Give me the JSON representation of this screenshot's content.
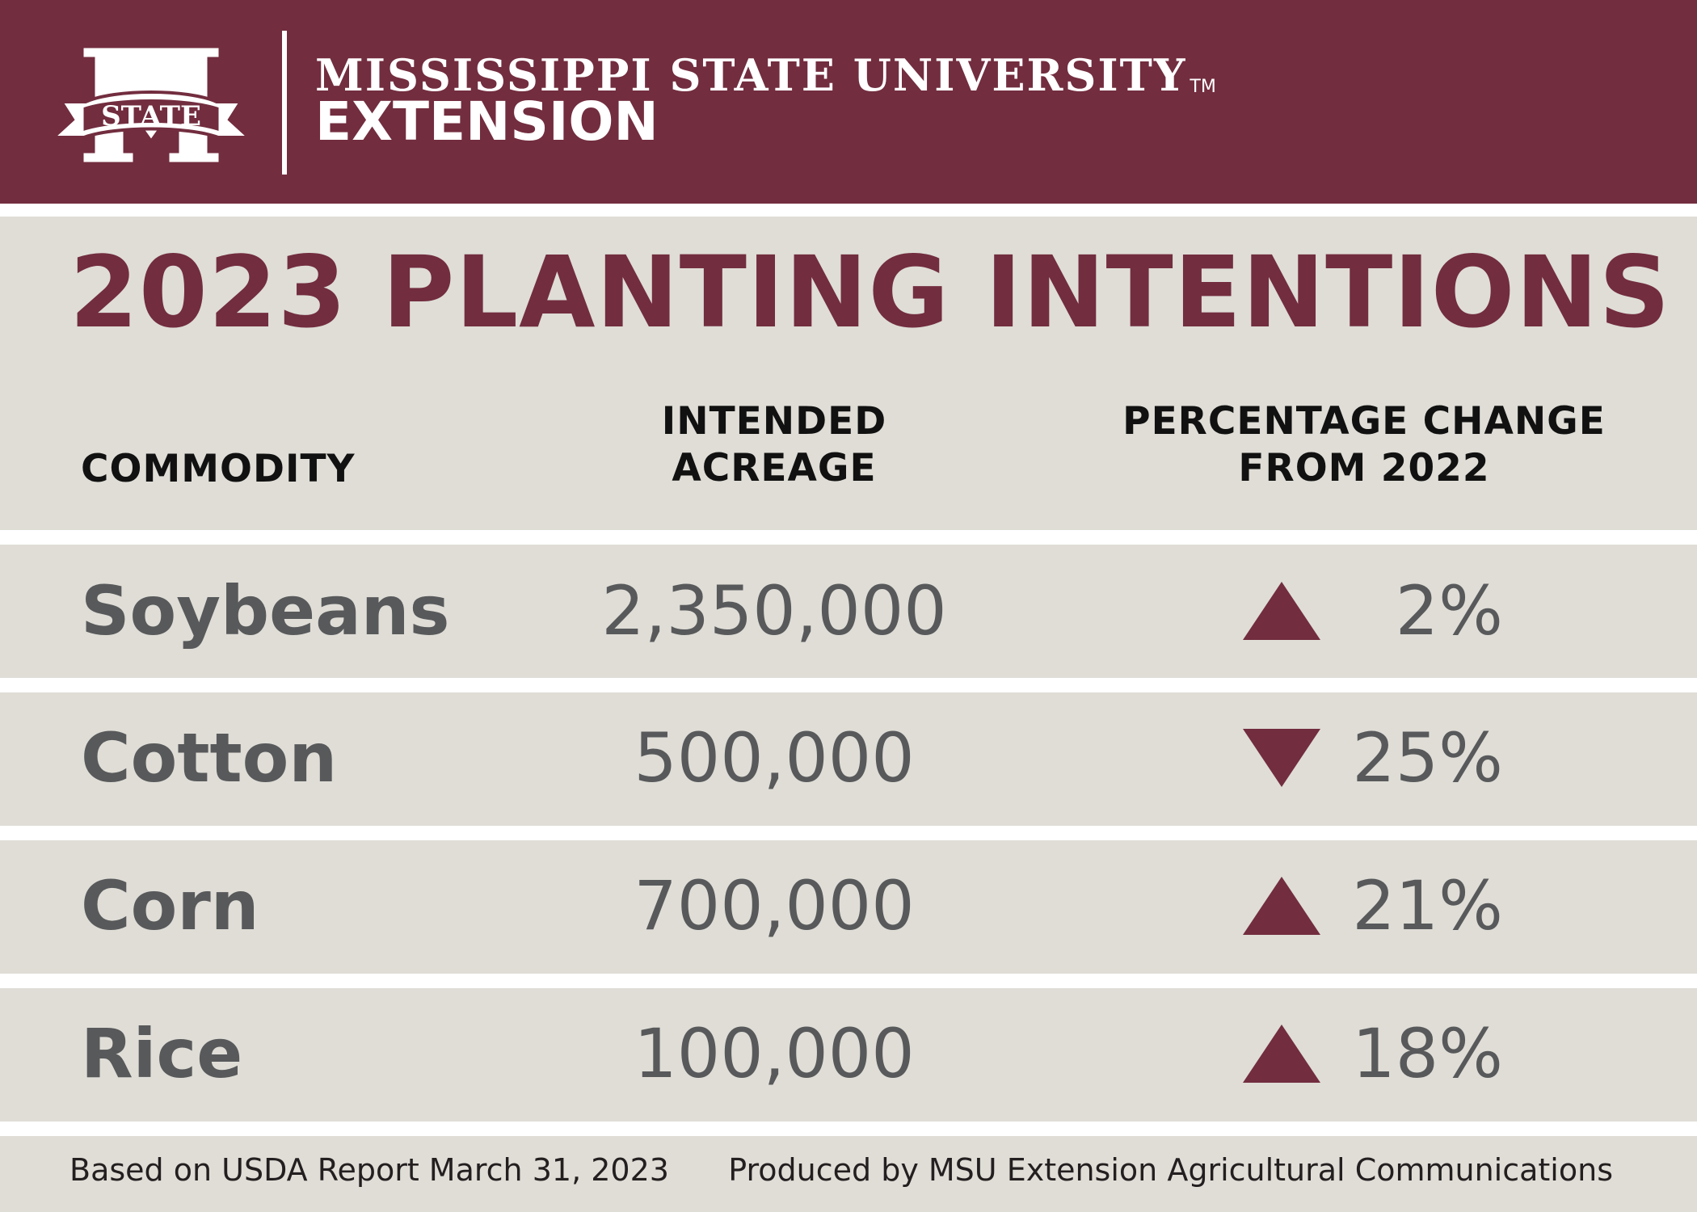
{
  "header": {
    "logo_text": "STATE",
    "university": "MISSISSIPPI STATE UNIVERSITY",
    "trademark": "TM",
    "unit": "EXTENSION"
  },
  "title": "2023 PLANTING INTENTIONS",
  "columns": {
    "commodity": "COMMODITY",
    "acreage_line1": "INTENDED",
    "acreage_line2": "ACREAGE",
    "change_line1": "PERCENTAGE CHANGE",
    "change_line2": "FROM 2022"
  },
  "rows": [
    {
      "commodity": "Soybeans",
      "acreage": "2,350,000",
      "direction": "up",
      "change": "2%"
    },
    {
      "commodity": "Cotton",
      "acreage": "500,000",
      "direction": "down",
      "change": "25%"
    },
    {
      "commodity": "Corn",
      "acreage": "700,000",
      "direction": "up",
      "change": "21%"
    },
    {
      "commodity": "Rice",
      "acreage": "100,000",
      "direction": "up",
      "change": "18%"
    }
  ],
  "footer": {
    "source": "Based on USDA Report March 31, 2023",
    "credit": "Produced by MSU Extension Agricultural Communications"
  },
  "colors": {
    "maroon": "#722d3f",
    "band": "#dfddd6",
    "value_text": "#58595b"
  },
  "chart_data": {
    "type": "table",
    "title": "2023 PLANTING INTENTIONS",
    "columns": [
      "COMMODITY",
      "INTENDED ACREAGE",
      "PERCENTAGE CHANGE FROM 2022"
    ],
    "categories": [
      "Soybeans",
      "Cotton",
      "Corn",
      "Rice"
    ],
    "series": [
      {
        "name": "INTENDED ACREAGE",
        "values": [
          2350000,
          500000,
          700000,
          100000
        ]
      },
      {
        "name": "PERCENTAGE CHANGE FROM 2022",
        "values": [
          2,
          -25,
          21,
          18
        ]
      }
    ]
  }
}
